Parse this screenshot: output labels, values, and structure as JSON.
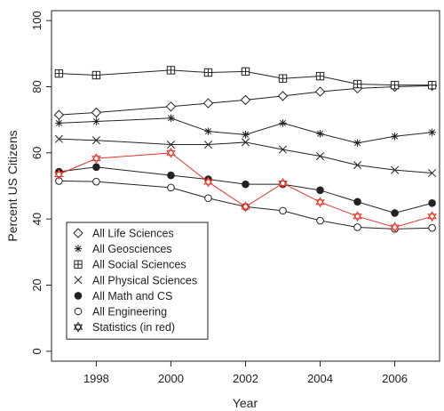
{
  "chart_data": {
    "type": "line",
    "xlabel": "Year",
    "ylabel": "Percent US Citizens",
    "xlim": [
      1996.8,
      2007.2
    ],
    "ylim": [
      -3,
      103
    ],
    "x_ticks": [
      1998,
      2000,
      2002,
      2004,
      2006
    ],
    "x_tick_labels": [
      "1998",
      "2000",
      "2002",
      "2004",
      "2006"
    ],
    "y_ticks": [
      0,
      20,
      40,
      60,
      80,
      100
    ],
    "y_tick_labels": [
      "0",
      "20",
      "40",
      "60",
      "80",
      "100"
    ],
    "x": [
      1997,
      1998,
      2000,
      2001,
      2002,
      2003,
      2004,
      2005,
      2006,
      2007
    ],
    "grid": false,
    "legend_position": "bottom-left",
    "series": [
      {
        "name": "All Life Sciences",
        "marker": "diamond",
        "color": "#222222",
        "values": [
          71.5,
          72.2,
          74,
          75,
          76,
          77.2,
          78.5,
          79.5,
          80,
          80.3
        ]
      },
      {
        "name": "All Geosciences",
        "marker": "asterisk",
        "color": "#222222",
        "values": [
          69,
          69.5,
          70.5,
          66.5,
          65.5,
          69,
          65.8,
          63,
          65,
          66.2
        ]
      },
      {
        "name": "All Social Sciences",
        "marker": "boxplus",
        "color": "#222222",
        "values": [
          84,
          83.5,
          85,
          84.3,
          84.6,
          82.5,
          83.2,
          80.8,
          80.5,
          80.5
        ]
      },
      {
        "name": "All Physical Sciences",
        "marker": "cross",
        "color": "#222222",
        "values": [
          64.2,
          63.8,
          62.5,
          62.5,
          63.2,
          61,
          59,
          56.3,
          54.8,
          53.9
        ]
      },
      {
        "name": "All Math and CS",
        "marker": "filled-circle",
        "color": "#222222",
        "values": [
          54.3,
          55.7,
          53.2,
          52,
          50.5,
          50.5,
          48.7,
          45.2,
          41.8,
          44.8
        ]
      },
      {
        "name": "All Engineering",
        "marker": "open-circle",
        "color": "#222222",
        "values": [
          51.5,
          51.3,
          49.5,
          46.3,
          43.7,
          42.5,
          39.5,
          37.5,
          37,
          37.3
        ]
      },
      {
        "name": "Statistics (in red)",
        "marker": "star-of-david",
        "color": "#e8322a",
        "values": [
          53.5,
          58.3,
          60,
          51.2,
          43.7,
          50.8,
          45.1,
          40.8,
          37.5,
          40.8
        ]
      }
    ]
  }
}
